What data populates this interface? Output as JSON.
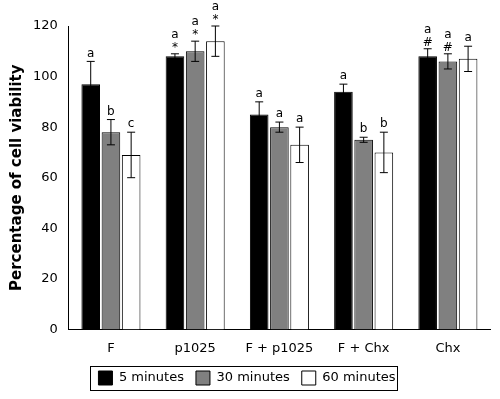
{
  "chart_data": {
    "type": "bar",
    "categories": [
      "F",
      "p1025",
      "F + p1025",
      "F + Chx",
      "Chx"
    ],
    "y_label": "Percentage of cell viability",
    "ylim": [
      0,
      120
    ],
    "yticks": [
      0,
      20,
      40,
      60,
      80,
      100,
      120
    ],
    "grid": false,
    "legend": "bottom",
    "series": [
      {
        "name": "5 minutes",
        "color": "#000000",
        "values": [
          97,
          108,
          85,
          94,
          108
        ],
        "errors": [
          9,
          1,
          5,
          3,
          3
        ],
        "letters": [
          "a",
          "a",
          "a",
          "a",
          "a"
        ],
        "symbols": [
          null,
          "*",
          null,
          null,
          "#"
        ]
      },
      {
        "name": "30 minutes",
        "color": "#808080",
        "values": [
          78,
          110,
          80,
          75,
          106
        ],
        "errors": [
          5,
          4,
          2,
          1,
          3
        ],
        "letters": [
          "b",
          "a",
          "a",
          "b",
          "a"
        ],
        "symbols": [
          null,
          "*",
          null,
          null,
          "#"
        ]
      },
      {
        "name": "60 minutes",
        "color": "#ffffff",
        "values": [
          69,
          114,
          73,
          70,
          107
        ],
        "errors": [
          9,
          6,
          7,
          8,
          5
        ],
        "letters": [
          "c",
          "a",
          "a",
          "b",
          "a"
        ],
        "symbols": [
          null,
          "*",
          null,
          null,
          null
        ]
      }
    ]
  }
}
